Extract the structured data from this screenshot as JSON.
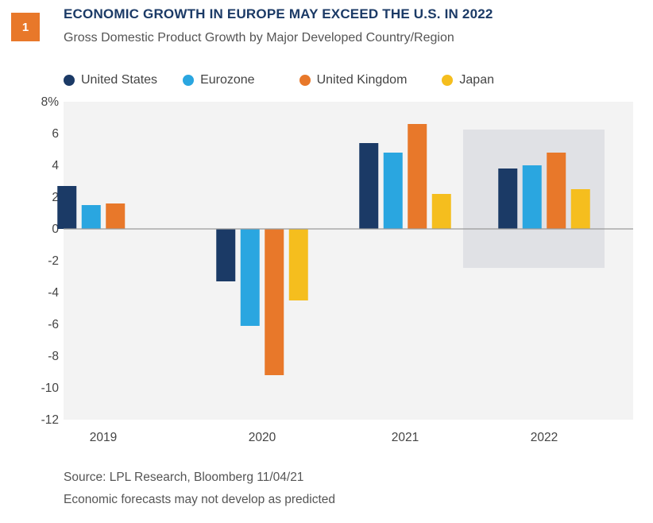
{
  "badge": "1",
  "title": "ECONOMIC GROWTH IN EUROPE MAY EXCEED THE U.S. IN 2022",
  "subtitle": "Gross Domestic Product Growth by Major Developed Country/Region",
  "footer": {
    "source": "Source: LPL Research, Bloomberg  11/04/21",
    "note": "Economic forecasts may not develop as predicted"
  },
  "chart_data": {
    "type": "bar",
    "categories": [
      "2019",
      "2020",
      "2021",
      "2022"
    ],
    "series": [
      {
        "name": "United States",
        "color": "#1b3a66",
        "values": [
          2.7,
          -3.3,
          5.4,
          3.8
        ]
      },
      {
        "name": "Eurozone",
        "color": "#2aa6e0",
        "values": [
          1.5,
          -6.1,
          4.8,
          4.0
        ]
      },
      {
        "name": "United Kingdom",
        "color": "#e8782a",
        "values": [
          1.6,
          -9.2,
          6.6,
          4.8
        ]
      },
      {
        "name": "Japan",
        "color": "#f5be1e",
        "values": [
          null,
          -4.5,
          2.2,
          2.5
        ]
      }
    ],
    "yticks": [
      "8%",
      "6",
      "4",
      "2",
      "0",
      "-2",
      "-4",
      "-6",
      "-8",
      "-10",
      "-12"
    ],
    "ylim": [
      -12,
      8
    ],
    "highlighted_category": "2022",
    "legend_position": "top-left",
    "grid": false
  }
}
